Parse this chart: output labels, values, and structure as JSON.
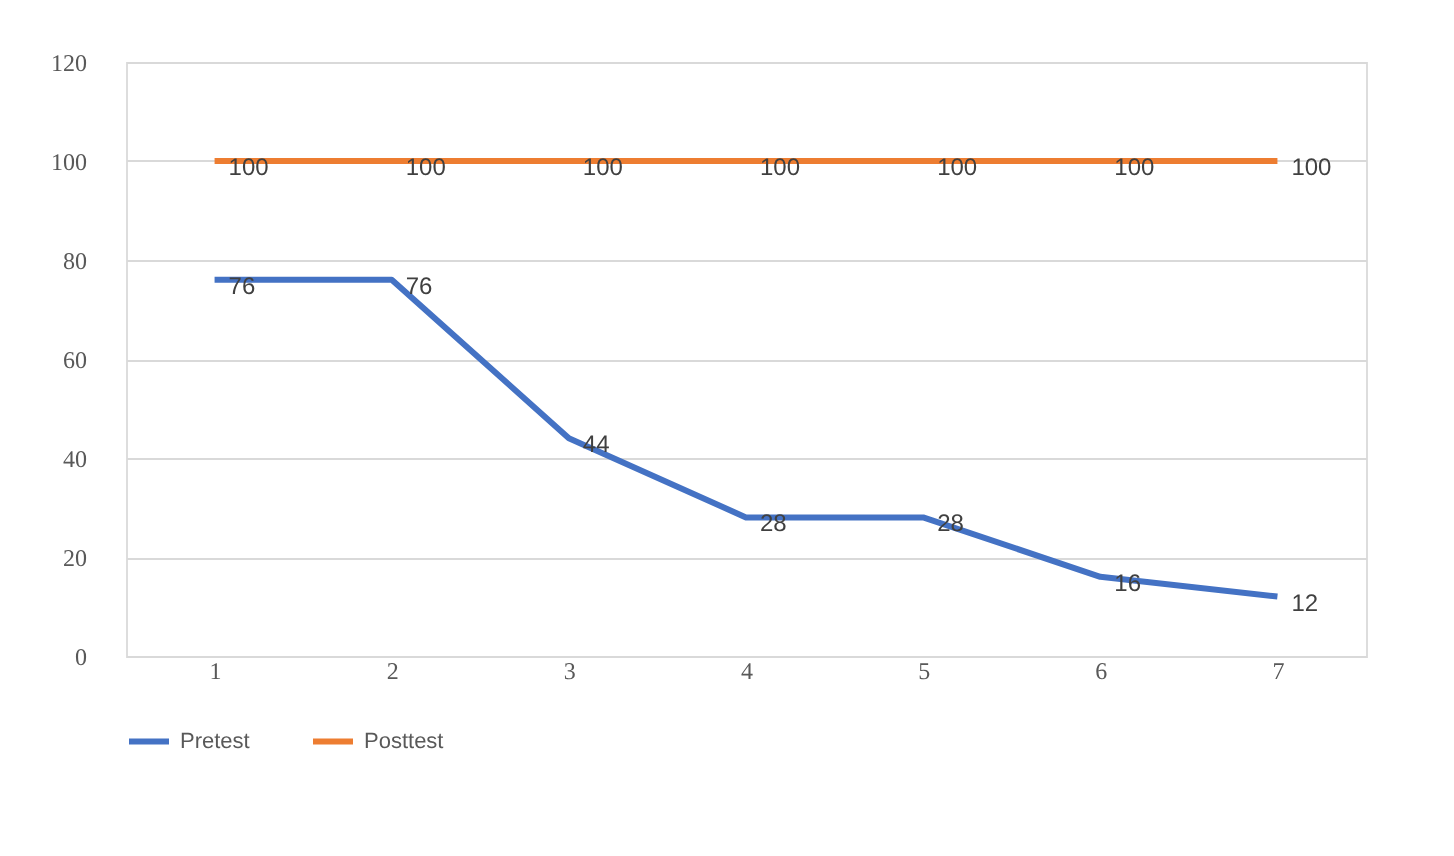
{
  "chart_data": {
    "type": "line",
    "categories": [
      "1",
      "2",
      "3",
      "4",
      "5",
      "6",
      "7"
    ],
    "series": [
      {
        "name": "Pretest",
        "color": "#4472c4",
        "values": [
          76,
          76,
          44,
          28,
          28,
          16,
          12
        ]
      },
      {
        "name": "Posttest",
        "color": "#ed7d31",
        "values": [
          100,
          100,
          100,
          100,
          100,
          100,
          100
        ]
      }
    ],
    "ylim": [
      0,
      120
    ],
    "yticks": [
      0,
      20,
      40,
      60,
      80,
      100,
      120
    ],
    "grid": "y",
    "legend": "bottom",
    "data_labels": true,
    "marker": "none",
    "line_style": "solid"
  }
}
